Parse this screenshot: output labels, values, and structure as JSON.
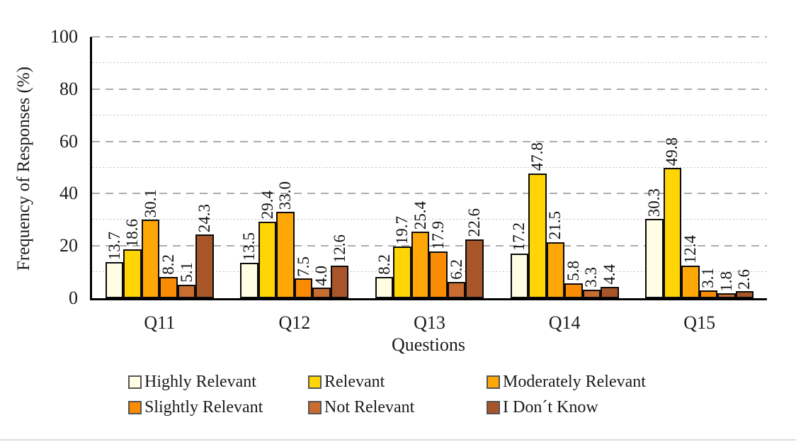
{
  "chart_data": {
    "type": "bar",
    "categories": [
      "Q11",
      "Q12",
      "Q13",
      "Q14",
      "Q15"
    ],
    "series": [
      {
        "name": "Highly Relevant",
        "color": "#FFFDE3",
        "values": [
          13.7,
          13.5,
          8.2,
          17.2,
          30.3
        ]
      },
      {
        "name": "Relevant",
        "color": "#FFD506",
        "values": [
          18.6,
          29.4,
          19.7,
          47.8,
          49.8
        ]
      },
      {
        "name": "Moderately Relevant",
        "color": "#FFA707",
        "values": [
          30.1,
          33.0,
          25.4,
          21.5,
          12.4
        ]
      },
      {
        "name": "Slightly Relevant",
        "color": "#FA8B05",
        "values": [
          8.2,
          7.5,
          17.9,
          5.8,
          3.1
        ]
      },
      {
        "name": "Not Relevant",
        "color": "#C96C30",
        "values": [
          5.1,
          4.0,
          6.2,
          3.3,
          1.8
        ]
      },
      {
        "name": "I Don´t Know",
        "color": "#A8552A",
        "values": [
          24.3,
          12.6,
          22.6,
          4.4,
          2.6
        ]
      }
    ],
    "xlabel": "Questions",
    "ylabel": "Frequency of Responses (%)",
    "ylim": [
      0,
      100
    ],
    "yticks": [
      0,
      20,
      40,
      60,
      80,
      100
    ],
    "minor_yticks": [
      10,
      30,
      50,
      70,
      90
    ],
    "value_label_decimals": 1,
    "grid": {
      "major": "dashed",
      "minor": "dotted"
    },
    "legend_position": "bottom",
    "colors": {
      "axis": "#000000",
      "bar_border": "#0a0a0a",
      "major_grid": "#acacac",
      "minor_grid": "#bfbfbf",
      "text": "#1a1a1a",
      "legend_swatch_border": "#555555"
    }
  }
}
